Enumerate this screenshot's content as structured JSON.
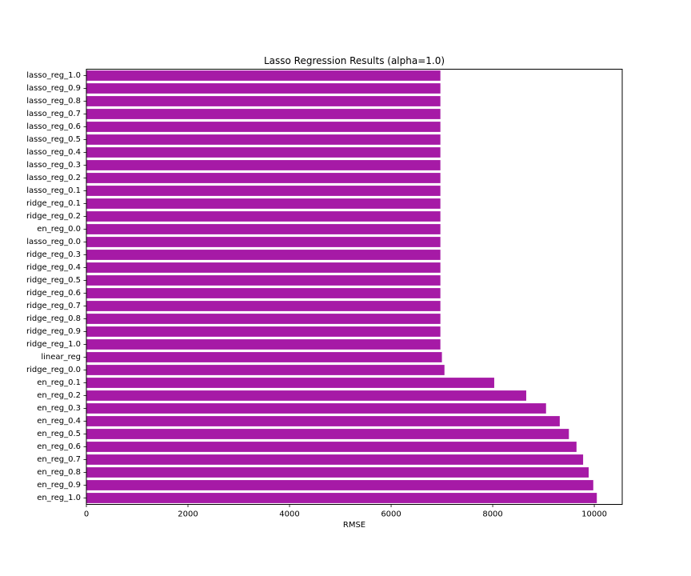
{
  "chart_data": {
    "type": "bar",
    "orientation": "horizontal",
    "title": "Lasso Regression Results (alpha=1.0)",
    "xlabel": "RMSE",
    "ylabel": "",
    "xlim": [
      0,
      10550
    ],
    "xticks": [
      "0",
      "2000",
      "4000",
      "6000",
      "8000",
      "10000"
    ],
    "grid": false,
    "bar_color": "#a61aa6",
    "categories": [
      "lasso_reg_1.0",
      "lasso_reg_0.9",
      "lasso_reg_0.8",
      "lasso_reg_0.7",
      "lasso_reg_0.6",
      "lasso_reg_0.5",
      "lasso_reg_0.4",
      "lasso_reg_0.3",
      "lasso_reg_0.2",
      "lasso_reg_0.1",
      "ridge_reg_0.1",
      "ridge_reg_0.2",
      "en_reg_0.0",
      "lasso_reg_0.0",
      "ridge_reg_0.3",
      "ridge_reg_0.4",
      "ridge_reg_0.5",
      "ridge_reg_0.6",
      "ridge_reg_0.7",
      "ridge_reg_0.8",
      "ridge_reg_0.9",
      "ridge_reg_1.0",
      "linear_reg",
      "ridge_reg_0.0",
      "en_reg_0.1",
      "en_reg_0.2",
      "en_reg_0.3",
      "en_reg_0.4",
      "en_reg_0.5",
      "en_reg_0.6",
      "en_reg_0.7",
      "en_reg_0.8",
      "en_reg_0.9",
      "en_reg_1.0"
    ],
    "values": [
      6970,
      6970,
      6970,
      6970,
      6970,
      6970,
      6970,
      6970,
      6970,
      6970,
      6970,
      6970,
      6970,
      6970,
      6970,
      6970,
      6970,
      6970,
      6970,
      6970,
      6970,
      6970,
      7000,
      7050,
      8030,
      8660,
      9050,
      9320,
      9500,
      9650,
      9780,
      9890,
      9980,
      10050
    ]
  }
}
